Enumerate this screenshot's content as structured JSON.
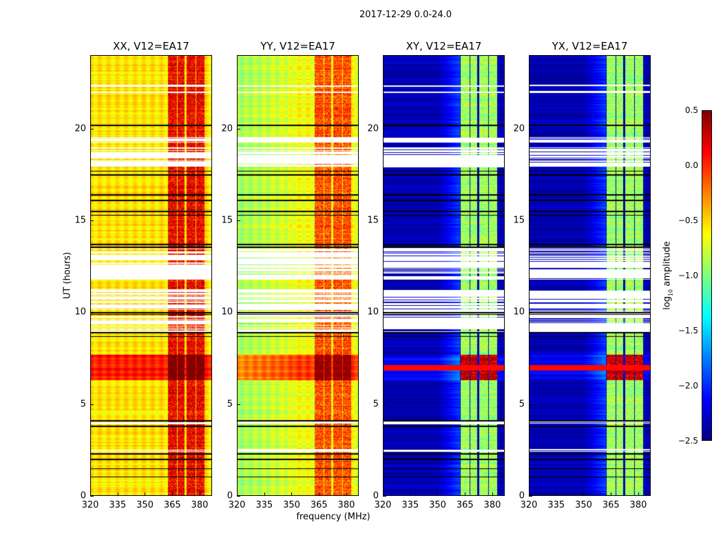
{
  "chart_data": {
    "type": "heatmap",
    "title": "2017-12-29 0.0-24.0",
    "xlabel": "frequency (MHz)",
    "ylabel": "UT (hours)",
    "xlim": [
      320,
      386.8
    ],
    "ylim": [
      0,
      24
    ],
    "xticks": [
      "320",
      "335",
      "350",
      "365",
      "380"
    ],
    "xtick_values": [
      320,
      335,
      350,
      365,
      380
    ],
    "yticks": [
      "0",
      "5",
      "10",
      "15",
      "20"
    ],
    "ytick_values": [
      0,
      5,
      10,
      15,
      20
    ],
    "colormap": "jet",
    "colorbar": {
      "label_main": "log",
      "label_sub": "10",
      "label_rest": " amplitude",
      "range": [
        -2.5,
        0.5
      ],
      "ticks": [
        "0.5",
        "0.0",
        "−0.5",
        "−1.0",
        "−1.5",
        "−2.0",
        "−2.5"
      ],
      "tick_values": [
        0.5,
        0.0,
        -0.5,
        -1.0,
        -1.5,
        -2.0,
        -2.5
      ]
    },
    "rfi_subbands_mhz": [
      [
        362.3,
        367.2
      ],
      [
        367.9,
        371.7
      ],
      [
        372.8,
        377.7
      ],
      [
        378.1,
        382.6
      ]
    ],
    "bright_interval_hours": [
      6.3,
      7.7
    ],
    "blanked_intervals_hours": [
      [
        2.4,
        2.55
      ],
      [
        3.9,
        4.15
      ],
      [
        8.95,
        11.25
      ],
      [
        11.8,
        13.5
      ],
      [
        17.9,
        19.0
      ],
      [
        19.25,
        19.55
      ],
      [
        21.95,
        22.05
      ],
      [
        22.3,
        22.4
      ]
    ],
    "black_lines_hours": [
      1.05,
      1.5,
      2.0,
      2.3,
      3.8,
      4.1,
      8.7,
      8.9,
      9.9,
      10.0,
      13.55,
      13.7,
      15.3,
      15.5,
      16.1,
      16.4,
      17.5,
      17.7,
      20.2
    ],
    "panels": [
      {
        "title": "XX, V12=EA17",
        "base_level": -0.55,
        "band_level": 0.15
      },
      {
        "title": "YY, V12=EA17",
        "base_level": -0.9,
        "band_level": -0.1
      },
      {
        "title": "XY, V12=EA17",
        "base_level": -2.35,
        "band_level": -0.9
      },
      {
        "title": "YX, V12=EA17",
        "base_level": -2.35,
        "band_level": -0.9
      }
    ]
  }
}
